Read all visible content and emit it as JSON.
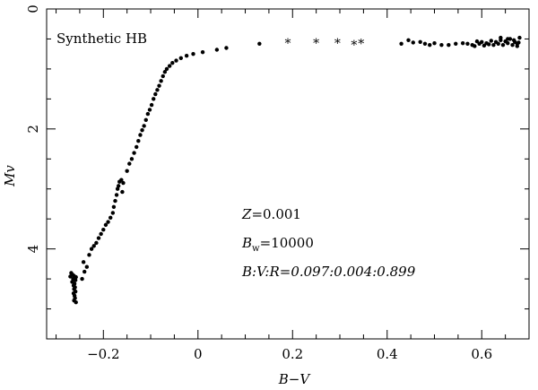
{
  "chart_data": {
    "type": "scatter",
    "title": "",
    "inset_label": "Synthetic HB",
    "xlabel": "B−V",
    "ylabel": "Mv",
    "xlim": [
      -0.32,
      0.7
    ],
    "ylim": [
      5.5,
      0.0
    ],
    "y_inverted": true,
    "grid": false,
    "x_ticks": [
      {
        "value": -0.2,
        "label": "−0.2"
      },
      {
        "value": 0.0,
        "label": "0"
      },
      {
        "value": 0.2,
        "label": "0.2"
      },
      {
        "value": 0.4,
        "label": "0.4"
      },
      {
        "value": 0.6,
        "label": "0.6"
      }
    ],
    "y_ticks": [
      {
        "value": 0,
        "label": "0"
      },
      {
        "value": 2,
        "label": "2"
      },
      {
        "value": 4,
        "label": "4"
      }
    ],
    "annotations": [
      {
        "id": "Z",
        "line1_italic": "Z",
        "line1_rest": "=0.001"
      },
      {
        "id": "Bw",
        "italic": "B",
        "sub": "w",
        "rest": "=10000"
      },
      {
        "id": "ratio",
        "text": "B:V:R=0.097:0.004:0.899"
      }
    ],
    "series": [
      {
        "marker": "dot",
        "points": [
          [
            -0.265,
            4.43
          ],
          [
            -0.262,
            4.45
          ],
          [
            -0.27,
            4.46
          ],
          [
            -0.258,
            4.47
          ],
          [
            -0.264,
            4.5
          ],
          [
            -0.259,
            4.52
          ],
          [
            -0.266,
            4.55
          ],
          [
            -0.261,
            4.58
          ],
          [
            -0.263,
            4.61
          ],
          [
            -0.26,
            4.64
          ],
          [
            -0.262,
            4.67
          ],
          [
            -0.259,
            4.71
          ],
          [
            -0.263,
            4.74
          ],
          [
            -0.261,
            4.78
          ],
          [
            -0.26,
            4.82
          ],
          [
            -0.262,
            4.86
          ],
          [
            -0.258,
            4.89
          ],
          [
            -0.268,
            4.4
          ],
          [
            -0.245,
            4.5
          ],
          [
            -0.24,
            4.38
          ],
          [
            -0.235,
            4.3
          ],
          [
            -0.242,
            4.22
          ],
          [
            -0.23,
            4.1
          ],
          [
            -0.225,
            4.0
          ],
          [
            -0.22,
            3.95
          ],
          [
            -0.215,
            3.9
          ],
          [
            -0.21,
            3.82
          ],
          [
            -0.205,
            3.75
          ],
          [
            -0.2,
            3.68
          ],
          [
            -0.195,
            3.6
          ],
          [
            -0.19,
            3.55
          ],
          [
            -0.185,
            3.48
          ],
          [
            -0.18,
            3.4
          ],
          [
            -0.178,
            3.3
          ],
          [
            -0.175,
            3.2
          ],
          [
            -0.172,
            3.1
          ],
          [
            -0.17,
            3.0
          ],
          [
            -0.168,
            2.95
          ],
          [
            -0.166,
            2.88
          ],
          [
            -0.162,
            2.85
          ],
          [
            -0.16,
            3.05
          ],
          [
            -0.158,
            2.9
          ],
          [
            -0.15,
            2.7
          ],
          [
            -0.145,
            2.58
          ],
          [
            -0.14,
            2.5
          ],
          [
            -0.135,
            2.4
          ],
          [
            -0.13,
            2.3
          ],
          [
            -0.126,
            2.2
          ],
          [
            -0.122,
            2.1
          ],
          [
            -0.118,
            2.02
          ],
          [
            -0.114,
            1.95
          ],
          [
            -0.11,
            1.85
          ],
          [
            -0.106,
            1.75
          ],
          [
            -0.102,
            1.68
          ],
          [
            -0.098,
            1.6
          ],
          [
            -0.094,
            1.5
          ],
          [
            -0.09,
            1.42
          ],
          [
            -0.086,
            1.35
          ],
          [
            -0.082,
            1.28
          ],
          [
            -0.078,
            1.2
          ],
          [
            -0.074,
            1.12
          ],
          [
            -0.07,
            1.05
          ],
          [
            -0.066,
            1.0
          ],
          [
            -0.06,
            0.95
          ],
          [
            -0.054,
            0.9
          ],
          [
            -0.046,
            0.86
          ],
          [
            -0.036,
            0.82
          ],
          [
            -0.024,
            0.78
          ],
          [
            -0.01,
            0.75
          ],
          [
            0.01,
            0.72
          ],
          [
            0.04,
            0.68
          ],
          [
            0.06,
            0.65
          ],
          [
            0.13,
            0.58
          ],
          [
            0.43,
            0.58
          ],
          [
            0.445,
            0.52
          ],
          [
            0.455,
            0.56
          ],
          [
            0.47,
            0.55
          ],
          [
            0.48,
            0.58
          ],
          [
            0.49,
            0.6
          ],
          [
            0.5,
            0.57
          ],
          [
            0.515,
            0.6
          ],
          [
            0.53,
            0.6
          ],
          [
            0.545,
            0.58
          ],
          [
            0.56,
            0.57
          ],
          [
            0.57,
            0.58
          ],
          [
            0.58,
            0.6
          ],
          [
            0.59,
            0.54
          ],
          [
            0.6,
            0.55
          ],
          [
            0.61,
            0.57
          ],
          [
            0.62,
            0.53
          ],
          [
            0.63,
            0.55
          ],
          [
            0.64,
            0.52
          ],
          [
            0.65,
            0.54
          ],
          [
            0.66,
            0.5
          ],
          [
            0.67,
            0.55
          ],
          [
            0.675,
            0.58
          ],
          [
            0.68,
            0.48
          ],
          [
            0.585,
            0.62
          ],
          [
            0.595,
            0.58
          ],
          [
            0.605,
            0.61
          ],
          [
            0.615,
            0.59
          ],
          [
            0.625,
            0.6
          ],
          [
            0.635,
            0.58
          ],
          [
            0.645,
            0.6
          ],
          [
            0.655,
            0.57
          ],
          [
            0.665,
            0.6
          ],
          [
            0.675,
            0.62
          ],
          [
            0.64,
            0.48
          ],
          [
            0.655,
            0.5
          ],
          [
            0.668,
            0.52
          ],
          [
            0.678,
            0.56
          ]
        ]
      },
      {
        "marker": "asterisk",
        "points": [
          [
            0.19,
            0.55
          ],
          [
            0.25,
            0.55
          ],
          [
            0.295,
            0.55
          ],
          [
            0.33,
            0.58
          ],
          [
            0.345,
            0.56
          ]
        ]
      }
    ]
  }
}
